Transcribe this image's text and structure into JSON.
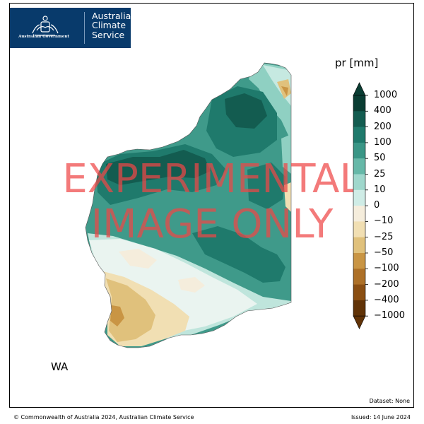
{
  "logo": {
    "government": "Australian Government",
    "service_lines": [
      "Australian",
      "Climate",
      "Service"
    ],
    "bg_color": "#083a6b"
  },
  "map": {
    "region_label": "WA",
    "watermark_lines": [
      "EXPERIMENTAL",
      "IMAGE ONLY"
    ],
    "watermark_color": "#ee4646"
  },
  "colorbar": {
    "title": "pr [mm]",
    "ticks": [
      "1000",
      "400",
      "200",
      "100",
      "50",
      "25",
      "10",
      "0",
      "−10",
      "−25",
      "−50",
      "−100",
      "−200",
      "−400",
      "−1000"
    ],
    "colors": [
      "#0a3d33",
      "#135c50",
      "#1f7a6c",
      "#3a9686",
      "#66b8a8",
      "#9fd7cc",
      "#cfece6",
      "#eff6f4",
      "#f5eddc",
      "#f1dfb3",
      "#e0c17c",
      "#c99544",
      "#ad7027",
      "#8a4e12",
      "#613307"
    ]
  },
  "footer": {
    "dataset": "Dataset: None",
    "copyright": "© Commonwealth of Australia 2024, Australian Climate Service",
    "issued": "Issued: 14 June 2024"
  }
}
